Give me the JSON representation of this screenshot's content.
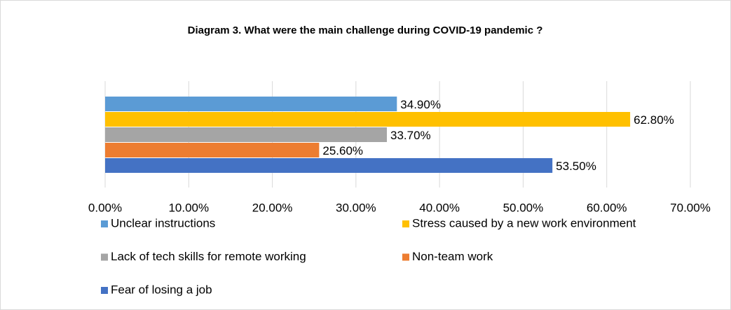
{
  "chart_data": {
    "type": "bar",
    "orientation": "horizontal",
    "title": "Diagram 3. What were the main challenge during COVID-19 pandemic ?",
    "categories": [
      null
    ],
    "series": [
      {
        "name": "Unclear instructions",
        "color": "#5b9bd5",
        "values": [
          34.9
        ],
        "value_labels": [
          "34.90%"
        ]
      },
      {
        "name": "Stress caused by a new work environment",
        "color": "#ffc000",
        "values": [
          62.8
        ],
        "value_labels": [
          "62.80%"
        ]
      },
      {
        "name": "Lack of tech skills for remote working",
        "color": "#a5a5a5",
        "values": [
          33.7
        ],
        "value_labels": [
          "33.70%"
        ]
      },
      {
        "name": "Non-team work",
        "color": "#ed7d31",
        "values": [
          25.6
        ],
        "value_labels": [
          "25.60%"
        ]
      },
      {
        "name": "Fear of losing a job",
        "color": "#4472c4",
        "values": [
          53.5
        ],
        "value_labels": [
          "53.50%"
        ]
      }
    ],
    "xlim": [
      0,
      70
    ],
    "xticks": [
      {
        "value": 0,
        "label": "0.00%"
      },
      {
        "value": 10,
        "label": "10.00%"
      },
      {
        "value": 20,
        "label": "20.00%"
      },
      {
        "value": 30,
        "label": "30.00%"
      },
      {
        "value": 40,
        "label": "40.00%"
      },
      {
        "value": 50,
        "label": "50.00%"
      },
      {
        "value": 60,
        "label": "60.00%"
      },
      {
        "value": 70,
        "label": "70.00%"
      }
    ],
    "grid": true,
    "legend": "bottom"
  }
}
